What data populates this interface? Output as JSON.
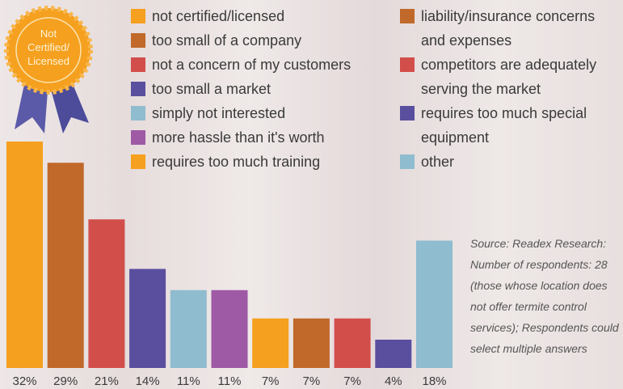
{
  "chart_data": {
    "type": "bar",
    "badge": [
      "Not",
      "Certified/",
      "Licensed"
    ],
    "categories": [
      "not certified/licensed",
      "too small of a company",
      "not a concern of my customers",
      "too small a market",
      "simply not interested",
      "more hassle than it's worth",
      "requires too much training",
      "liability/insurance concerns and expenses",
      "competitors are adequately serving the market",
      "requires too much special equipment",
      "other"
    ],
    "values": [
      32,
      29,
      21,
      14,
      11,
      11,
      7,
      7,
      7,
      4,
      18
    ],
    "value_labels": [
      "32%",
      "29%",
      "21%",
      "14%",
      "11%",
      "11%",
      "7%",
      "7%",
      "7%",
      "4%",
      "18%"
    ],
    "colors": [
      "#f5a01f",
      "#c0692a",
      "#d24e4b",
      "#5a4f9e",
      "#8fbccf",
      "#9e5aa5",
      "#f5a01f",
      "#c0692a",
      "#d24e4b",
      "#5a4f9e",
      "#8fbccf"
    ],
    "note": "Source: Readex Research: Number of respondents: 28 (those whose location does not offer termite control services); Respondents could select multiple answers"
  }
}
